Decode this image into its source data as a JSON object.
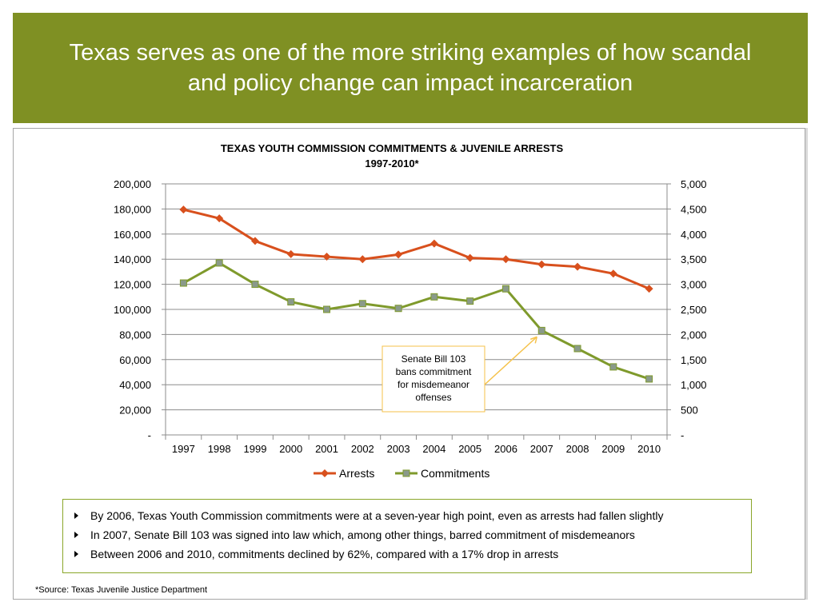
{
  "slide": {
    "title": "Texas serves as one of the more striking examples of how scandal and policy change can impact incarceration",
    "colors": {
      "header_bg": "#7f9023",
      "arrests": "#d8501d",
      "commitments": "#7f9a2c",
      "callout_border": "#f5c24a"
    }
  },
  "chart_data": {
    "type": "line",
    "title": "TEXAS YOUTH COMMISSION COMMITMENTS & JUVENILE ARRESTS",
    "subtitle": "1997-2010*",
    "categories": [
      "1997",
      "1998",
      "1999",
      "2000",
      "2001",
      "2002",
      "2003",
      "2004",
      "2005",
      "2006",
      "2007",
      "2008",
      "2009",
      "2010"
    ],
    "left_axis": {
      "ylim": [
        0,
        200000
      ],
      "ticks": [
        "-",
        "20,000",
        "40,000",
        "60,000",
        "80,000",
        "100,000",
        "120,000",
        "140,000",
        "160,000",
        "180,000",
        "200,000"
      ]
    },
    "right_axis": {
      "ylim": [
        0,
        5000
      ],
      "ticks": [
        "-",
        "500",
        "1,000",
        "1,500",
        "2,000",
        "2,500",
        "3,000",
        "3,500",
        "4,000",
        "4,500",
        "5,000"
      ]
    },
    "grid": true,
    "legend_position": "bottom",
    "series": [
      {
        "name": "Arrests",
        "axis": "left",
        "marker": "diamond",
        "values": [
          179500,
          172500,
          154500,
          144000,
          142000,
          140000,
          143700,
          152500,
          141000,
          140000,
          135800,
          134000,
          128500,
          116500
        ]
      },
      {
        "name": "Commitments",
        "axis": "right",
        "marker": "square",
        "values": [
          3025,
          3425,
          3000,
          2650,
          2500,
          2615,
          2520,
          2750,
          2665,
          2910,
          2080,
          1720,
          1355,
          1115
        ]
      }
    ],
    "annotation": {
      "text": [
        "Senate Bill 103",
        "bans commitment",
        "for misdemeanor",
        "offenses"
      ],
      "points_to": "2007"
    }
  },
  "notes": [
    "By 2006, Texas Youth Commission commitments were at a seven-year high point, even as arrests had fallen slightly",
    "In 2007, Senate Bill 103 was signed into law which, among other things, barred commitment of misdemeanors",
    "Between 2006 and 2010, commitments declined by 62%, compared with  a 17% drop in arrests"
  ],
  "source": "*Source: Texas Juvenile Justice Department"
}
